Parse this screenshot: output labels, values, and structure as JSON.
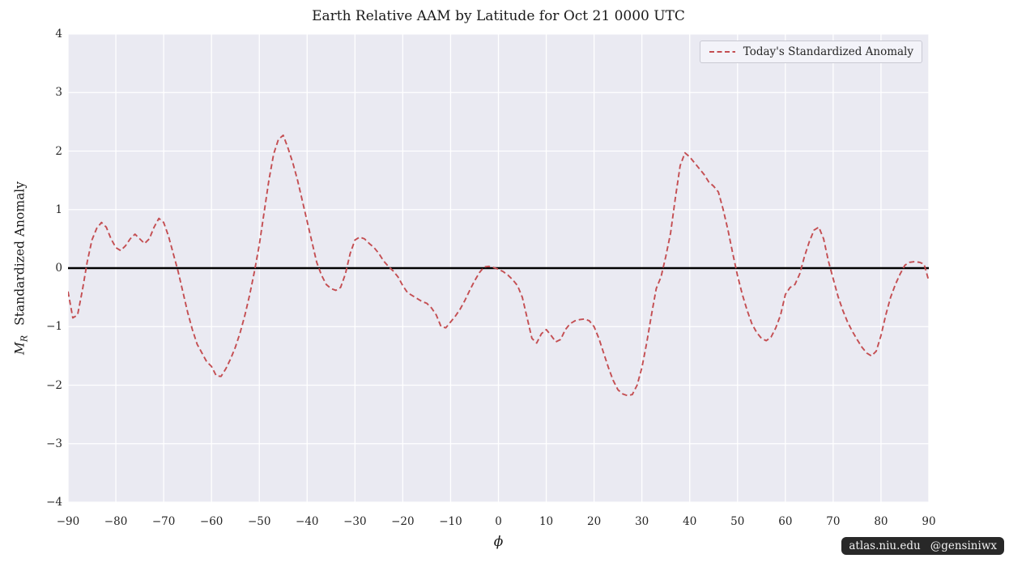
{
  "figure": {
    "title": "Earth Relative AAM by Latitude for Oct 21 0000 UTC"
  },
  "legend": {
    "label": "Today's Standardized Anomaly"
  },
  "axes": {
    "xlabel": "ϕ",
    "ylabel": {
      "var": "M",
      "sub": "R",
      "text": "Standardized Anomaly"
    }
  },
  "watermark": {
    "site": "atlas.niu.edu",
    "handle": "@gensiniwx"
  },
  "colors": {
    "line": "#c44e52",
    "plot_bg": "#eaeaf2",
    "grid": "#ffffff",
    "zero_line": "#000000",
    "text": "#262626",
    "legend_bg": "#f3f3f9",
    "legend_border": "#c9c9d3",
    "badge_bg": "#161616",
    "badge_text": "#f2f2f2"
  },
  "chart_data": {
    "type": "line",
    "title": "Earth Relative AAM by Latitude for Oct 21 0000 UTC",
    "xlabel": "ϕ",
    "ylabel": "M_R Standardized Anomaly",
    "xlim": [
      -90,
      90
    ],
    "ylim": [
      -4,
      4
    ],
    "grid": true,
    "legend_position": "upper right",
    "zero_line_y": 0,
    "x_ticks": [
      -90,
      -80,
      -70,
      -60,
      -50,
      -40,
      -30,
      -20,
      -10,
      0,
      10,
      20,
      30,
      40,
      50,
      60,
      70,
      80,
      90
    ],
    "x_tick_labels": [
      "−90",
      "−80",
      "−70",
      "−60",
      "−50",
      "−40",
      "−30",
      "−20",
      "−10",
      "0",
      "10",
      "20",
      "30",
      "40",
      "50",
      "60",
      "70",
      "80",
      "90"
    ],
    "y_ticks": [
      -4,
      -3,
      -2,
      -1,
      0,
      1,
      2,
      3,
      4
    ],
    "y_tick_labels": [
      "−4",
      "−3",
      "−2",
      "−1",
      "0",
      "1",
      "2",
      "3",
      "4"
    ],
    "series": [
      {
        "name": "Today's Standardized Anomaly",
        "color": "#c44e52",
        "linestyle": "dashed",
        "x": [
          -90,
          -89,
          -88,
          -87,
          -86,
          -85,
          -84,
          -83,
          -82,
          -81,
          -80,
          -79,
          -78,
          -77,
          -76,
          -75,
          -74,
          -73,
          -72,
          -71,
          -70,
          -69,
          -68,
          -67,
          -66,
          -65,
          -64,
          -63,
          -62,
          -61,
          -60,
          -59,
          -58,
          -57,
          -56,
          -55,
          -54,
          -53,
          -52,
          -51,
          -50,
          -49,
          -48,
          -47,
          -46,
          -45,
          -44,
          -43,
          -42,
          -41,
          -40,
          -39,
          -38,
          -37,
          -36,
          -35,
          -34,
          -33,
          -32,
          -31,
          -30,
          -29,
          -28,
          -27,
          -26,
          -25,
          -24,
          -23,
          -22,
          -21,
          -20,
          -19,
          -18,
          -17,
          -16,
          -15,
          -14,
          -13,
          -12,
          -11,
          -10,
          -9,
          -8,
          -7,
          -6,
          -5,
          -4,
          -3,
          -2,
          -1,
          0,
          1,
          2,
          3,
          4,
          5,
          6,
          7,
          8,
          9,
          10,
          11,
          12,
          13,
          14,
          15,
          16,
          17,
          18,
          19,
          20,
          21,
          22,
          23,
          24,
          25,
          26,
          27,
          28,
          29,
          30,
          31,
          32,
          33,
          34,
          35,
          36,
          37,
          38,
          39,
          40,
          41,
          42,
          43,
          44,
          45,
          46,
          47,
          48,
          49,
          50,
          51,
          52,
          53,
          54,
          55,
          56,
          57,
          58,
          59,
          60,
          61,
          62,
          63,
          64,
          65,
          66,
          67,
          68,
          69,
          70,
          71,
          72,
          73,
          74,
          75,
          76,
          77,
          78,
          79,
          80,
          81,
          82,
          83,
          84,
          85,
          86,
          87,
          88,
          89,
          90
        ],
        "y": [
          -0.4,
          -0.85,
          -0.8,
          -0.38,
          0.1,
          0.48,
          0.68,
          0.78,
          0.7,
          0.5,
          0.35,
          0.3,
          0.38,
          0.5,
          0.58,
          0.5,
          0.42,
          0.5,
          0.7,
          0.85,
          0.78,
          0.55,
          0.25,
          -0.05,
          -0.4,
          -0.75,
          -1.05,
          -1.3,
          -1.45,
          -1.6,
          -1.68,
          -1.84,
          -1.85,
          -1.72,
          -1.55,
          -1.35,
          -1.1,
          -0.8,
          -0.45,
          -0.05,
          0.4,
          0.95,
          1.5,
          1.95,
          2.2,
          2.27,
          2.05,
          1.8,
          1.5,
          1.15,
          0.8,
          0.45,
          0.1,
          -0.12,
          -0.28,
          -0.35,
          -0.38,
          -0.33,
          -0.1,
          0.25,
          0.48,
          0.53,
          0.5,
          0.42,
          0.35,
          0.25,
          0.12,
          0.03,
          -0.05,
          -0.15,
          -0.3,
          -0.42,
          -0.47,
          -0.52,
          -0.57,
          -0.6,
          -0.68,
          -0.8,
          -1.0,
          -1.02,
          -0.92,
          -0.82,
          -0.7,
          -0.55,
          -0.38,
          -0.22,
          -0.08,
          0.02,
          0.03,
          0.01,
          -0.02,
          -0.06,
          -0.12,
          -0.2,
          -0.3,
          -0.5,
          -0.85,
          -1.2,
          -1.28,
          -1.12,
          -1.05,
          -1.15,
          -1.26,
          -1.22,
          -1.05,
          -0.95,
          -0.9,
          -0.88,
          -0.87,
          -0.9,
          -1.0,
          -1.2,
          -1.45,
          -1.7,
          -1.92,
          -2.08,
          -2.15,
          -2.18,
          -2.16,
          -2.0,
          -1.7,
          -1.28,
          -0.8,
          -0.35,
          -0.15,
          0.2,
          0.6,
          1.2,
          1.75,
          1.97,
          1.9,
          1.8,
          1.7,
          1.6,
          1.47,
          1.4,
          1.3,
          1.0,
          0.65,
          0.25,
          -0.13,
          -0.45,
          -0.72,
          -0.95,
          -1.1,
          -1.2,
          -1.24,
          -1.18,
          -1.02,
          -0.8,
          -0.45,
          -0.33,
          -0.28,
          -0.1,
          0.2,
          0.45,
          0.65,
          0.7,
          0.5,
          0.12,
          -0.18,
          -0.48,
          -0.72,
          -0.92,
          -1.08,
          -1.22,
          -1.35,
          -1.45,
          -1.5,
          -1.42,
          -1.15,
          -0.8,
          -0.5,
          -0.28,
          -0.1,
          0.05,
          0.1,
          0.11,
          0.1,
          0.07,
          -0.22
        ]
      }
    ]
  }
}
